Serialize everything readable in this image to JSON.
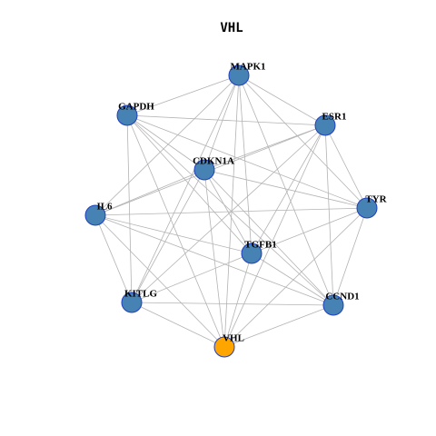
{
  "title": "VHL",
  "nodes": [
    {
      "label": "MAPK1"
    },
    {
      "label": "GAPDH"
    },
    {
      "label": "ESR1"
    },
    {
      "label": "CDKN1A"
    },
    {
      "label": "IL6"
    },
    {
      "label": "TYR"
    },
    {
      "label": "TGFB1"
    },
    {
      "label": "KITLG"
    },
    {
      "label": "CCND1"
    },
    {
      "label": "VHL"
    }
  ]
}
